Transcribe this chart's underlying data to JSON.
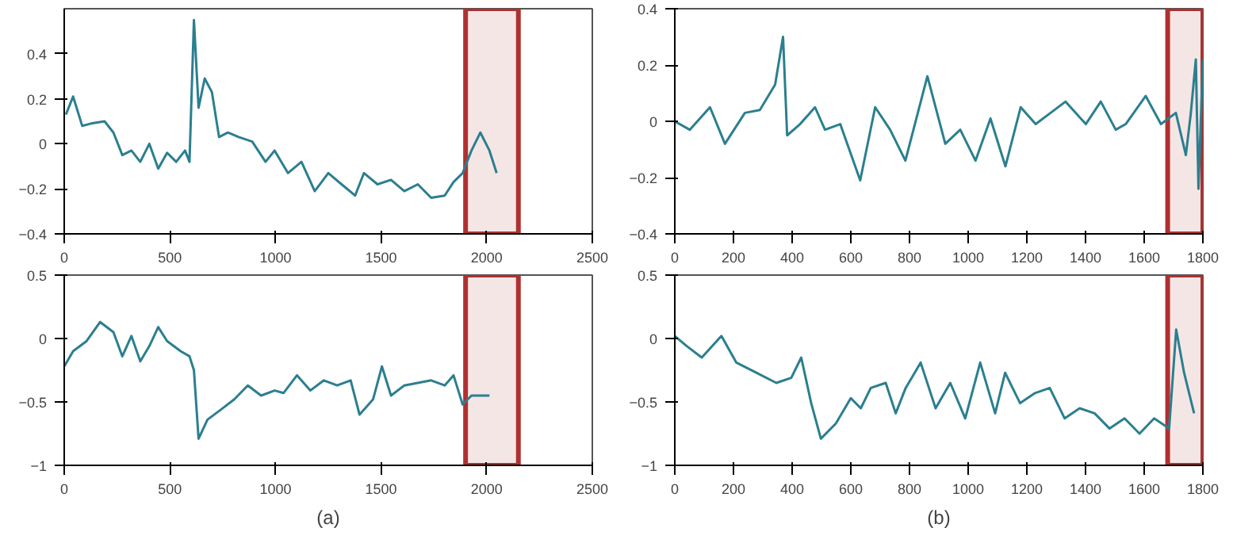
{
  "chart_data": [
    {
      "type": "line",
      "x": [
        8,
        42,
        85,
        127,
        191,
        233,
        275,
        318,
        360,
        403,
        445,
        487,
        530,
        572,
        593,
        614,
        636,
        665,
        699,
        733,
        775,
        826,
        890,
        953,
        996,
        1059,
        1123,
        1186,
        1250,
        1313,
        1377,
        1419,
        1483,
        1547,
        1610,
        1674,
        1737,
        1801,
        1843,
        1886,
        1928,
        1970,
        2013,
        2047
      ],
      "series": [
        {
          "color": "#2b7f8f",
          "values": [
            0.13,
            0.21,
            0.08,
            0.09,
            0.1,
            0.05,
            -0.05,
            -0.03,
            -0.08,
            0,
            -0.11,
            -0.04,
            -0.08,
            -0.03,
            -0.08,
            0.55,
            0.16,
            0.29,
            0.23,
            0.03,
            0.05,
            0.03,
            0.01,
            -0.08,
            -0.03,
            -0.13,
            -0.08,
            -0.21,
            -0.13,
            -0.18,
            -0.23,
            -0.13,
            -0.18,
            -0.16,
            -0.21,
            -0.18,
            -0.24,
            -0.23,
            -0.17,
            -0.13,
            -0.03,
            0.05,
            -0.03,
            -0.13
          ]
        }
      ],
      "xlim": [
        0,
        2500
      ],
      "xticks": [
        0,
        500,
        1000,
        1500,
        2000,
        2500
      ],
      "ylim": [
        -0.4,
        0.6
      ],
      "yticks": [
        -0.4,
        -0.2,
        0,
        0.2,
        0.4
      ],
      "grid": false,
      "bands": [
        {
          "axis": "x",
          "from": 1900,
          "to": 2150,
          "color": "#b03030"
        }
      ]
    },
    {
      "type": "line",
      "x": [
        0,
        51,
        120,
        171,
        239,
        290,
        342,
        369,
        383,
        427,
        478,
        512,
        564,
        632,
        683,
        734,
        786,
        861,
        922,
        973,
        1025,
        1076,
        1127,
        1179,
        1230,
        1281,
        1332,
        1401,
        1452,
        1503,
        1537,
        1605,
        1657,
        1708,
        1742,
        1759,
        1776,
        1785,
        1800
      ],
      "series": [
        {
          "color": "#2b7f8f",
          "values": [
            0,
            -0.03,
            0.05,
            -0.08,
            0.03,
            0.04,
            0.13,
            0.3,
            -0.05,
            -0.01,
            0.05,
            -0.03,
            -0.01,
            -0.21,
            0.05,
            -0.03,
            -0.14,
            0.16,
            -0.08,
            -0.03,
            -0.14,
            0.01,
            -0.16,
            0.05,
            -0.01,
            0.03,
            0.07,
            -0.01,
            0.07,
            -0.03,
            -0.01,
            0.09,
            -0.01,
            0.03,
            -0.12,
            0.03,
            0.22,
            -0.24,
            0.22
          ]
        }
      ],
      "xlim": [
        0,
        1800
      ],
      "xticks": [
        0,
        200,
        400,
        600,
        800,
        1000,
        1200,
        1400,
        1600,
        1800
      ],
      "ylim": [
        -0.4,
        0.4
      ],
      "yticks": [
        -0.4,
        -0.2,
        0,
        0.2,
        0.4
      ],
      "grid": false,
      "bands": [
        {
          "axis": "x",
          "from": 1680,
          "to": 1800,
          "color": "#b03030"
        }
      ]
    },
    {
      "type": "line",
      "x": [
        0,
        42,
        106,
        170,
        233,
        275,
        318,
        360,
        403,
        445,
        487,
        551,
        593,
        614,
        636,
        678,
        742,
        805,
        869,
        932,
        996,
        1038,
        1102,
        1165,
        1229,
        1292,
        1356,
        1398,
        1462,
        1504,
        1547,
        1610,
        1674,
        1737,
        1801,
        1843,
        1886,
        1928,
        2013
      ],
      "series": [
        {
          "color": "#2b7f8f",
          "values": [
            -0.22,
            -0.1,
            -0.02,
            0.13,
            0.05,
            -0.14,
            0.02,
            -0.18,
            -0.06,
            0.09,
            -0.02,
            -0.1,
            -0.14,
            -0.25,
            -0.79,
            -0.64,
            -0.56,
            -0.48,
            -0.37,
            -0.45,
            -0.41,
            -0.43,
            -0.29,
            -0.41,
            -0.33,
            -0.37,
            -0.33,
            -0.6,
            -0.48,
            -0.22,
            -0.45,
            -0.37,
            -0.35,
            -0.33,
            -0.37,
            -0.29,
            -0.52,
            -0.45,
            -0.45
          ]
        }
      ],
      "xlim": [
        0,
        2500
      ],
      "xticks": [
        0,
        500,
        1000,
        1500,
        2000,
        2500
      ],
      "ylim": [
        -1,
        0.5
      ],
      "yticks": [
        -1,
        -0.5,
        0,
        0.5
      ],
      "grid": false,
      "xlabel": "(a)",
      "bands": [
        {
          "axis": "x",
          "from": 1900,
          "to": 2150,
          "color": "#b03030"
        }
      ]
    },
    {
      "type": "line",
      "x": [
        0,
        41,
        92,
        159,
        210,
        278,
        346,
        397,
        431,
        465,
        498,
        549,
        600,
        634,
        668,
        719,
        753,
        787,
        838,
        889,
        939,
        990,
        1041,
        1092,
        1126,
        1177,
        1228,
        1278,
        1329,
        1380,
        1431,
        1482,
        1533,
        1584,
        1634,
        1685,
        1709,
        1736,
        1770
      ],
      "series": [
        {
          "color": "#2b7f8f",
          "values": [
            0.02,
            -0.06,
            -0.15,
            0.02,
            -0.19,
            -0.27,
            -0.35,
            -0.31,
            -0.15,
            -0.51,
            -0.79,
            -0.67,
            -0.47,
            -0.55,
            -0.39,
            -0.35,
            -0.59,
            -0.39,
            -0.19,
            -0.55,
            -0.35,
            -0.63,
            -0.19,
            -0.59,
            -0.27,
            -0.51,
            -0.43,
            -0.39,
            -0.63,
            -0.55,
            -0.59,
            -0.71,
            -0.63,
            -0.75,
            -0.63,
            -0.71,
            0.07,
            -0.27,
            -0.59
          ]
        }
      ],
      "xlim": [
        0,
        1800
      ],
      "xticks": [
        0,
        200,
        400,
        600,
        800,
        1000,
        1200,
        1400,
        1600,
        1800
      ],
      "ylim": [
        -1,
        0.5
      ],
      "yticks": [
        -1,
        -0.5,
        0,
        0.5
      ],
      "grid": false,
      "xlabel": "(b)",
      "bands": [
        {
          "axis": "x",
          "from": 1680,
          "to": 1800,
          "color": "#b03030"
        }
      ]
    }
  ]
}
